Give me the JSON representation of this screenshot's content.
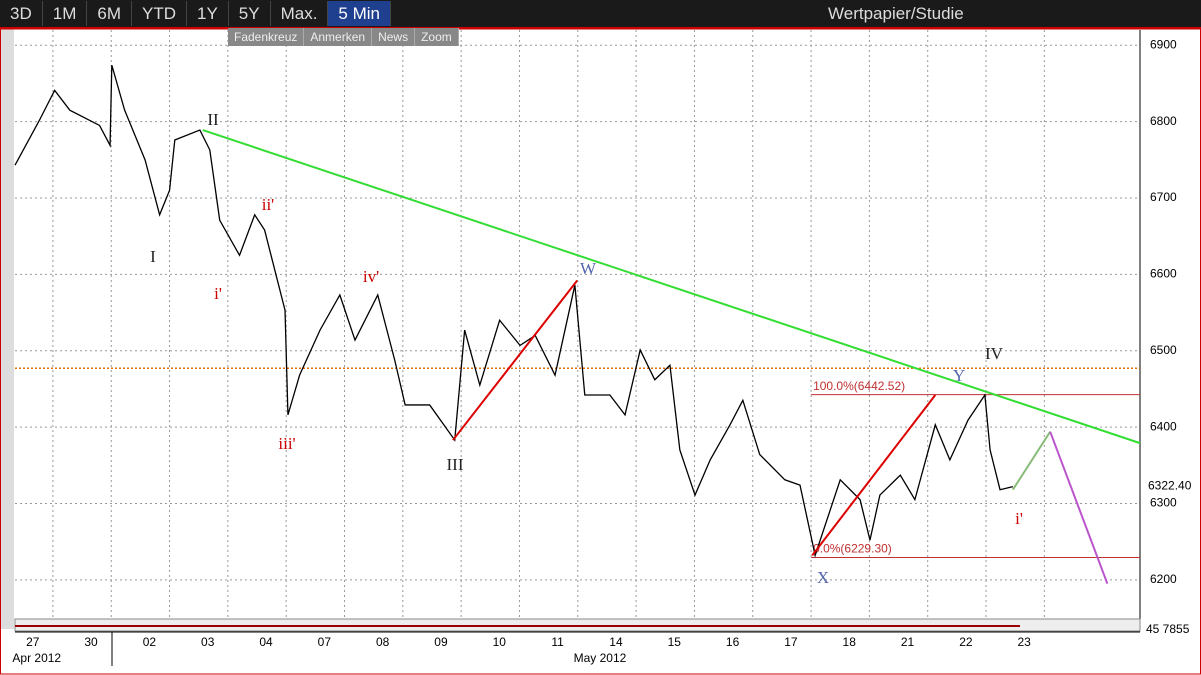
{
  "toolbar": {
    "ranges": [
      "3D",
      "1M",
      "6M",
      "YTD",
      "1Y",
      "5Y",
      "Max."
    ],
    "interval": "5 Min",
    "study": "Wertpapier/Studie"
  },
  "tools": [
    "Fadenkreuz",
    "Anmerken",
    "News",
    "Zoom"
  ],
  "chart_data": {
    "type": "line",
    "categories": [
      "27",
      "30",
      "02",
      "03",
      "04",
      "07",
      "08",
      "09",
      "10",
      "11",
      "14",
      "15",
      "16",
      "17",
      "18",
      "21",
      "22",
      "23"
    ],
    "months": [
      {
        "label": "Apr 2012",
        "at": 0
      },
      {
        "label": "May 2012",
        "at": 9.4
      }
    ],
    "xlim": [
      -0.15,
      19.14
    ],
    "ylim": [
      6150,
      6920
    ],
    "yticks": [
      6200,
      6300,
      6400,
      6500,
      6600,
      6700,
      6800,
      6900
    ],
    "grid": true,
    "series": [
      {
        "color": "#000000",
        "x": [
          -0.15,
          0.27,
          0.53,
          0.79,
          1.3,
          1.48,
          1.51,
          1.73,
          2.08,
          2.33,
          2.5,
          2.59,
          3.02,
          3.19,
          3.36,
          3.7,
          3.96,
          4.13,
          4.48,
          4.53,
          4.73,
          5.08,
          5.42,
          5.68,
          6.07,
          6.36,
          6.54,
          6.96,
          7.39,
          7.56,
          7.82,
          8.16,
          8.51,
          8.77,
          9.11,
          9.45,
          9.62,
          10.05,
          10.31,
          10.57,
          10.82,
          11.08,
          11.25,
          11.51,
          11.77,
          12.11,
          12.33,
          12.62,
          13.05,
          13.31,
          13.57,
          14.0,
          14.34,
          14.51,
          14.68,
          15.03,
          15.28,
          15.63,
          15.88,
          16.19,
          16.48,
          16.57,
          16.74,
          16.96
        ],
        "values": [
          6743,
          6802,
          6841,
          6815,
          6795,
          6769,
          6874,
          6815,
          6750,
          6678,
          6710,
          6776,
          6789,
          6763,
          6671,
          6625,
          6678,
          6658,
          6553,
          6416,
          6468,
          6527,
          6573,
          6514,
          6573,
          6488,
          6429,
          6429,
          6383,
          6527,
          6455,
          6540,
          6507,
          6520,
          6468,
          6586,
          6442,
          6442,
          6416,
          6501,
          6462,
          6481,
          6370,
          6311,
          6357,
          6403,
          6435,
          6364,
          6331,
          6324,
          6232,
          6331,
          6305,
          6252,
          6311,
          6337,
          6305,
          6403,
          6357,
          6409,
          6442,
          6370,
          6318,
          6322
        ]
      }
    ],
    "last_price": {
      "value": 6322.4,
      "label": "6322.40"
    },
    "reference_line": {
      "value": 6477,
      "color": "#e07000"
    },
    "fib_levels": [
      {
        "value": 6442.52,
        "label": "100.0%(6442.52)",
        "from": 13.5
      },
      {
        "value": 6229.3,
        "label": "0.0%(6229.30)",
        "from": 13.5
      }
    ],
    "trendlines": [
      {
        "color": "#33dd33",
        "x": [
          3.07,
          19.14
        ],
        "values": [
          6789,
          6379
        ]
      },
      {
        "color": "#dd0000",
        "x": [
          7.36,
          9.49
        ],
        "values": [
          6383,
          6592
        ]
      },
      {
        "color": "#dd0000",
        "x": [
          13.52,
          15.63
        ],
        "values": [
          6232,
          6442
        ]
      },
      {
        "color": "#88bb77",
        "x": [
          16.96,
          17.6
        ],
        "values": [
          6318,
          6394
        ]
      },
      {
        "color": "#bb55cc",
        "x": [
          17.6,
          18.58
        ],
        "values": [
          6394,
          6195
        ]
      }
    ],
    "annotations": [
      "II",
      "I",
      "i'",
      "ii'",
      "iii'",
      "iv'",
      "III",
      "W",
      "X",
      "Y",
      "IV",
      "i'"
    ],
    "indicator_label": "45 7855"
  }
}
